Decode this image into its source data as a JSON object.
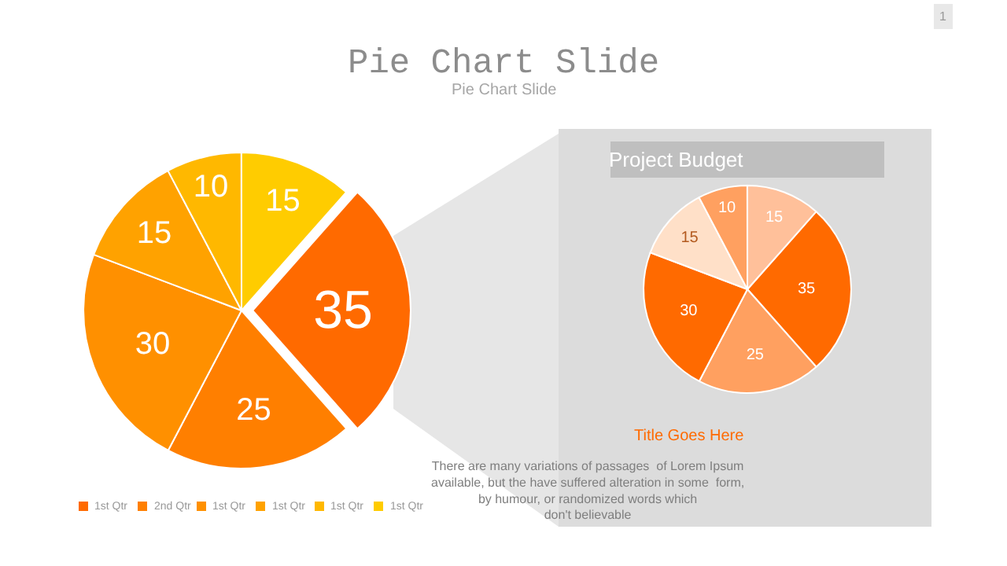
{
  "chart_data": [
    {
      "type": "pie",
      "title": "Pie Chart Slide",
      "subtitle": "Pie Chart Slide",
      "categories": [
        "1st Qtr",
        "2nd Qtr",
        "1st Qtr",
        "1st Qtr",
        "1st Qtr",
        "1st Qtr"
      ],
      "values": [
        35,
        25,
        30,
        15,
        10,
        15
      ],
      "colors": [
        "#ff6a00",
        "#ff7f00",
        "#ff9000",
        "#ffa200",
        "#ffb800",
        "#ffcc00"
      ],
      "data_labels": true,
      "legend": "bottom left",
      "annotations": [
        "1"
      ]
    },
    {
      "type": "pie",
      "title": "Project Budget",
      "categories": [
        null,
        null,
        null,
        null,
        null,
        null
      ],
      "values": [
        35,
        25,
        30,
        15,
        10,
        15
      ],
      "colors": [
        "#ff6a00",
        "#ffa060",
        "#ff6a00",
        "#ffe0c8",
        "#ffa060",
        "#ffc09a"
      ],
      "data_labels": true,
      "annotations": [
        "Title Goes Here",
        "There are many variations of passages  of Lorem Ipsum\navailable, but the have suffered alteration in some  form,\nby humour, or randomized words which\ndon't believable"
      ]
    }
  ]
}
